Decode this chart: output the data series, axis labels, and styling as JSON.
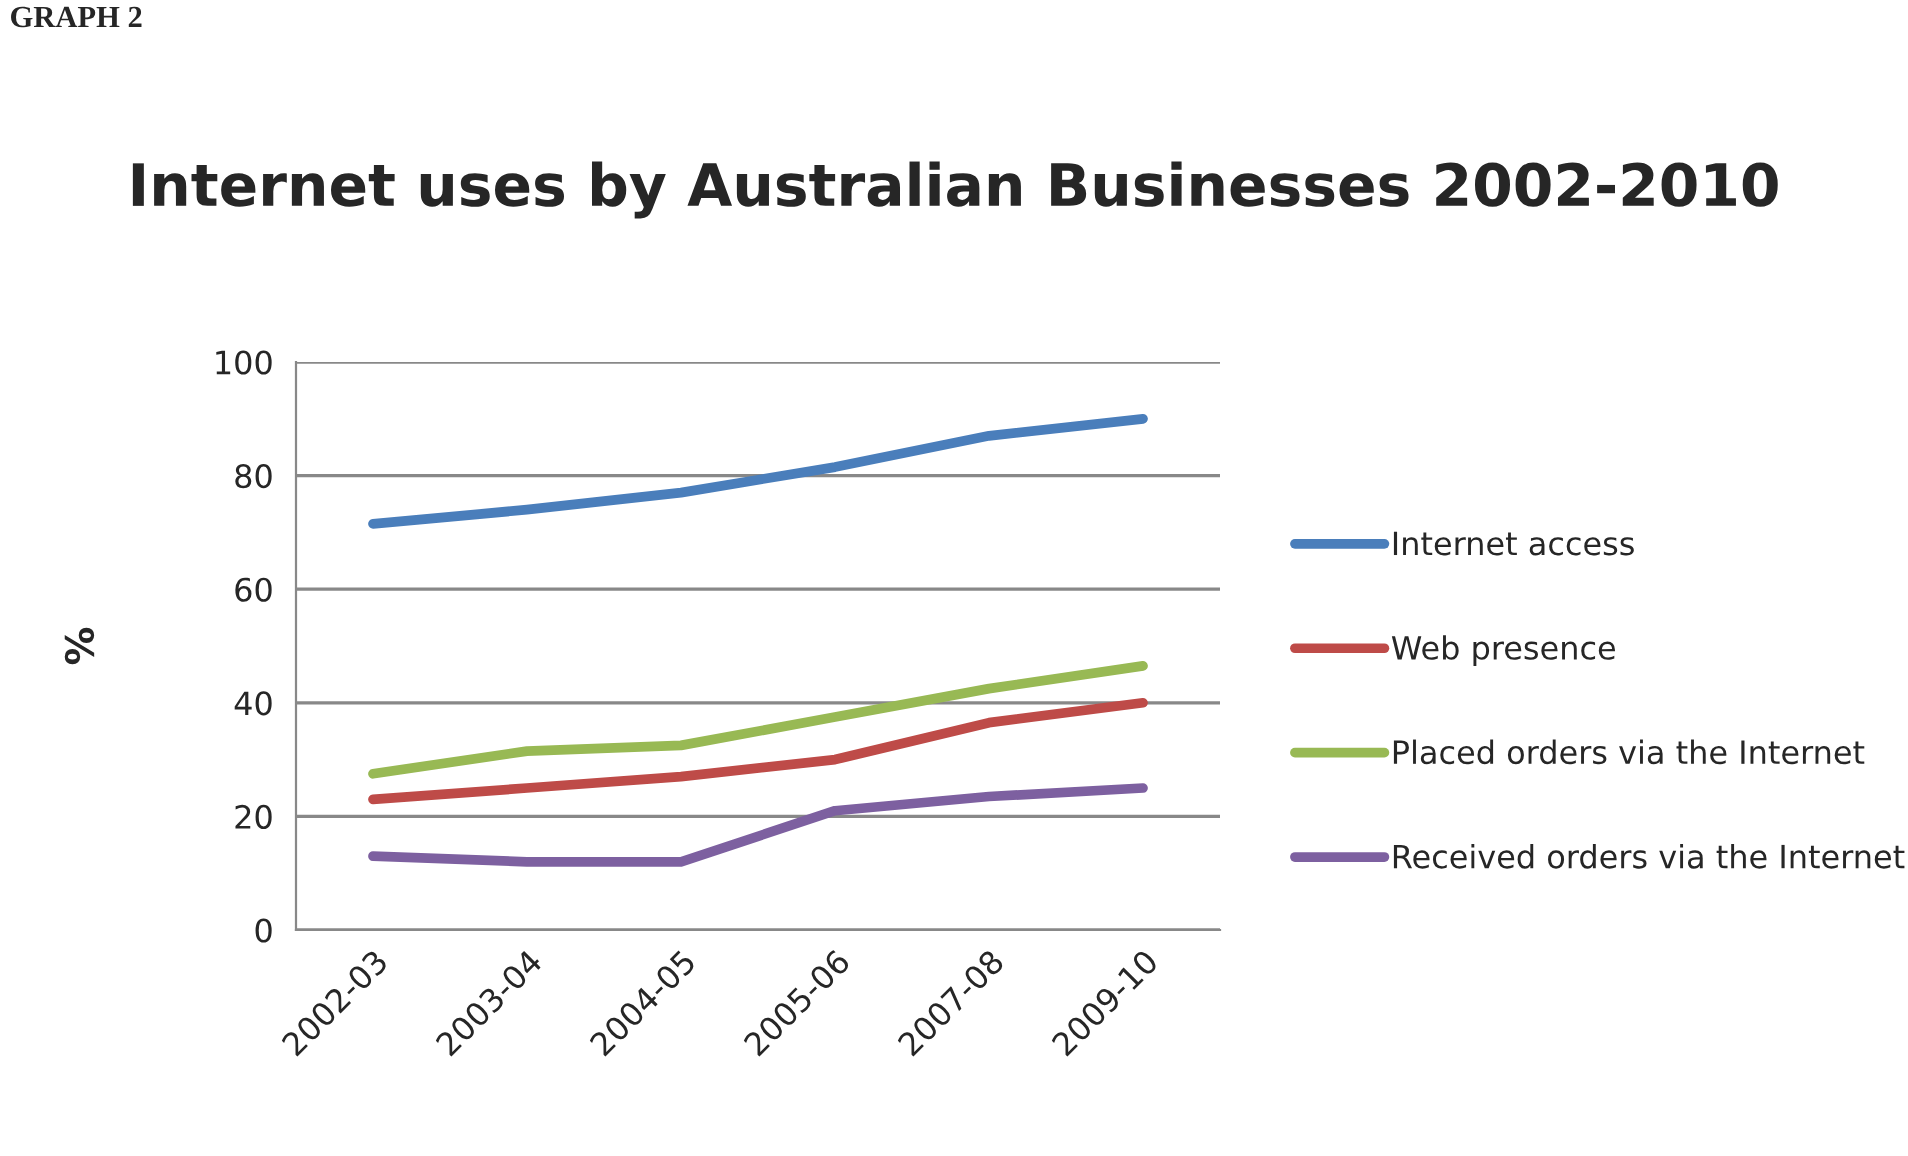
{
  "chart_data": {
    "type": "line",
    "title": "Internet uses by Australian Businesses 2002-2010",
    "ylabel": "%",
    "annotations": [
      "GRAPH 2"
    ],
    "categories": [
      "2002-03",
      "2003-04",
      "2004-05",
      "2005-06",
      "2007-08",
      "2009-10"
    ],
    "series": [
      {
        "name": "Internet access",
        "color": "#4a7ebb",
        "values": [
          71.5,
          74,
          77,
          81.5,
          87,
          90
        ]
      },
      {
        "name": "Web presence",
        "color": "#be4b48",
        "values": [
          23,
          25,
          27,
          30,
          36.5,
          40
        ]
      },
      {
        "name": "Placed orders via the Internet",
        "color": "#98b954",
        "values": [
          27.5,
          31.5,
          32.5,
          37.5,
          42.5,
          46.5
        ]
      },
      {
        "name": "Received orders via the Internet",
        "color": "#7d60a0",
        "values": [
          13,
          12,
          12,
          21,
          23.5,
          25
        ]
      }
    ],
    "ylim": [
      0,
      100
    ],
    "yticks": [
      0,
      20,
      40,
      60,
      80,
      100
    ],
    "grid": "y",
    "legend": "right",
    "marker": "none",
    "line_style": "solid"
  }
}
